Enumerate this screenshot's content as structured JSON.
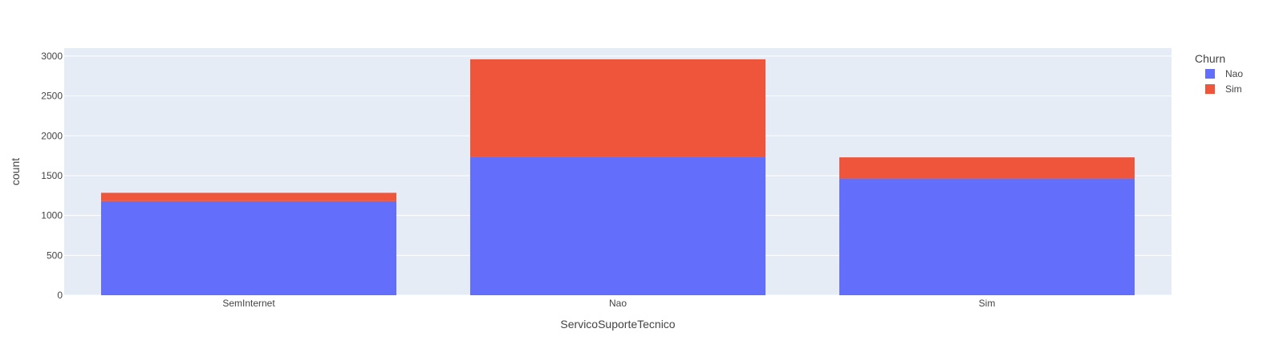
{
  "chart_data": {
    "type": "bar",
    "barmode": "stack",
    "xlabel": "ServicoSuporteTecnico",
    "ylabel": "count",
    "categories": [
      "SemInternet",
      "Nao",
      "Sim"
    ],
    "series": [
      {
        "name": "Nao",
        "color": "#636efa",
        "values": [
          1180,
          1740,
          1465
        ]
      },
      {
        "name": "Sim",
        "color": "#ef553b",
        "values": [
          105,
          1220,
          265
        ]
      }
    ],
    "ylim": [
      0,
      3100
    ],
    "yticks": [
      0,
      500,
      1000,
      1500,
      2000,
      2500,
      3000
    ],
    "ytick_labels": [
      "0",
      "500",
      "1000",
      "1500",
      "2000",
      "2500",
      "3000"
    ],
    "grid": true,
    "legend": {
      "title": "Churn",
      "position": "top-right"
    },
    "plot_background": "#e5ecf6"
  }
}
